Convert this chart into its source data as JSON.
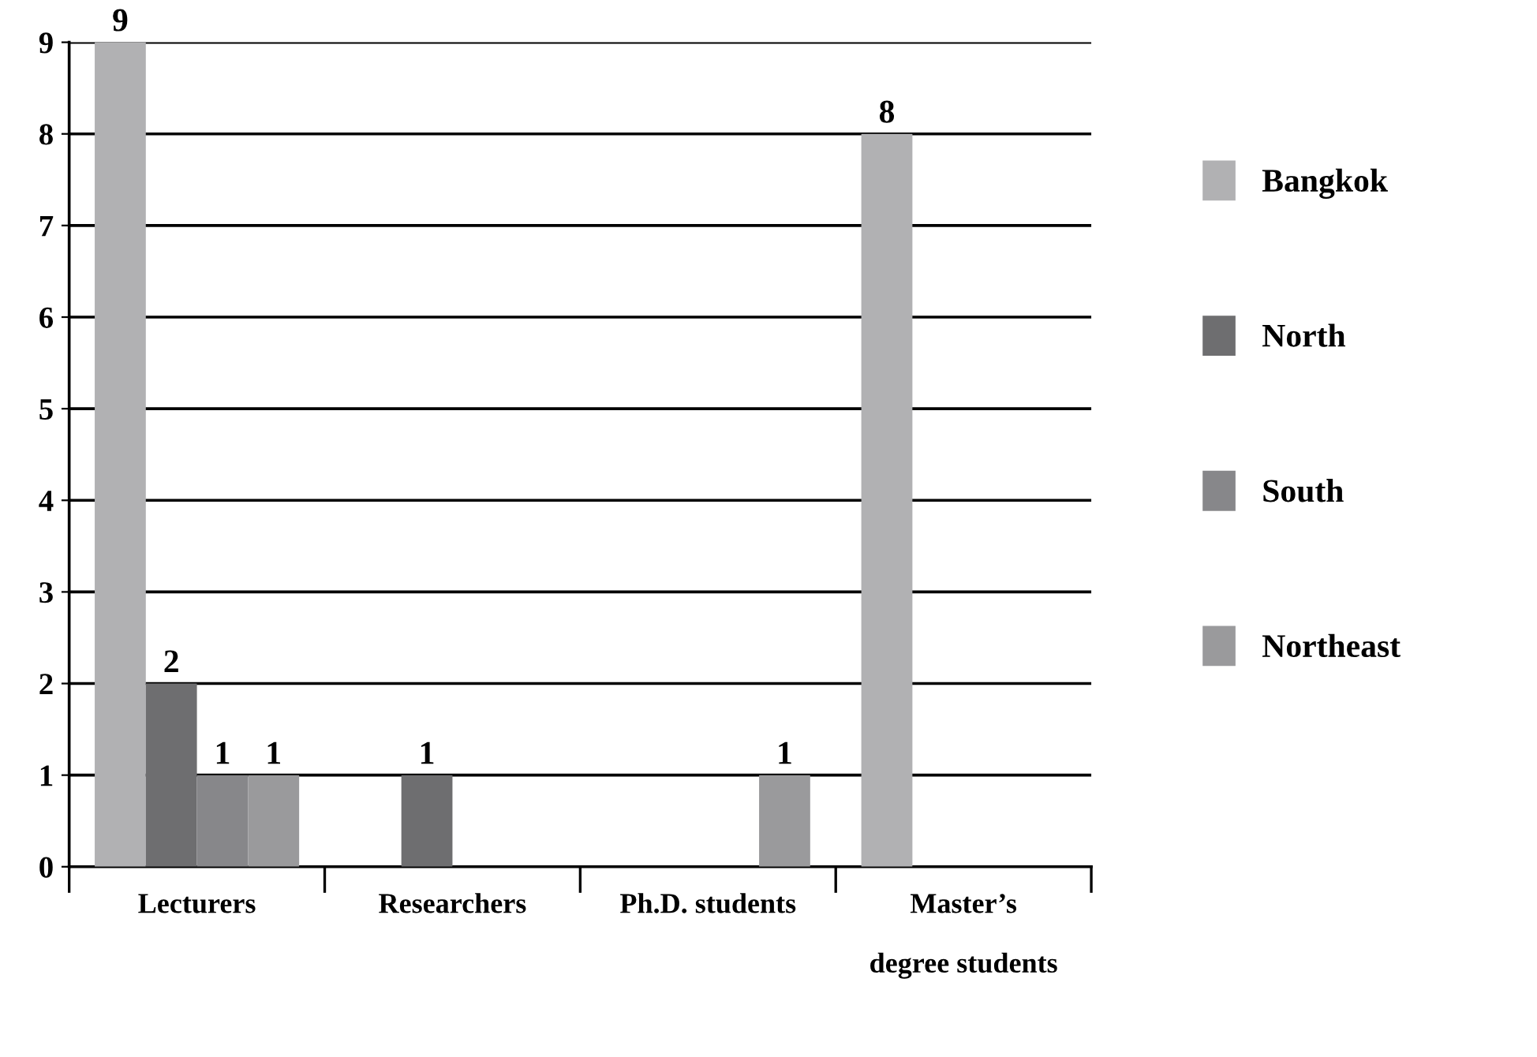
{
  "chart_data": {
    "type": "bar",
    "categories": [
      "Lecturers",
      "Researchers",
      "Ph.D. students",
      "Master’s\n\ndegree students"
    ],
    "series": [
      {
        "name": "Bangkok",
        "color": "#b1b1b3",
        "values": [
          9,
          0,
          0,
          8
        ],
        "value_labels": [
          "9",
          null,
          null,
          "8"
        ]
      },
      {
        "name": "North",
        "color": "#6e6e70",
        "values": [
          2,
          1,
          0,
          0
        ],
        "value_labels": [
          "2",
          "1",
          null,
          null
        ]
      },
      {
        "name": "South",
        "color": "#87878a",
        "values": [
          1,
          0,
          0,
          0
        ],
        "value_labels": [
          "1",
          null,
          null,
          null
        ]
      },
      {
        "name": "Northeast",
        "color": "#9a9a9c",
        "values": [
          1,
          0,
          1,
          0
        ],
        "value_labels": [
          "1",
          null,
          "1",
          null
        ]
      }
    ],
    "ylim": [
      0,
      9
    ],
    "yticks": [
      0,
      1,
      2,
      3,
      4,
      5,
      6,
      7,
      8,
      9
    ],
    "grid": "y",
    "legend": "right"
  }
}
